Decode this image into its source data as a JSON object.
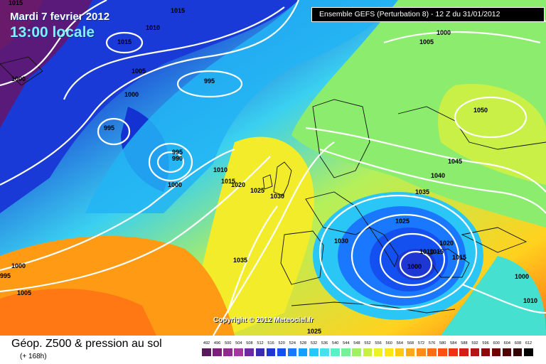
{
  "header": {
    "date": "Mardi 7 fevrier 2012",
    "local_time": "13:00 locale",
    "model": "Ensemble GEFS (Perturbation 8)  -  12 Z du 31/01/2012"
  },
  "copyright": "Copyright © 2012 Meteociel.fr",
  "footer": {
    "title": "Géop. Z500 & pression au sol",
    "subtitle": "(+ 168h)"
  },
  "isobar_labels": [
    "1015",
    "1010",
    "1015",
    "1000",
    "1005",
    "1000",
    "995",
    "995",
    "995",
    "990",
    "1000",
    "1010",
    "1015",
    "1020",
    "1025",
    "1030",
    "1000",
    "1005",
    "1050",
    "1045",
    "1040",
    "1035",
    "1025",
    "1030",
    "1010",
    "1015",
    "1020",
    "1015",
    "1000",
    "1035",
    "1000",
    "1005",
    "1000",
    "995",
    "1010",
    "1025",
    "1015"
  ],
  "scale": {
    "labels": [
      "492",
      "496",
      "500",
      "504",
      "508",
      "512",
      "516",
      "520",
      "524",
      "528",
      "532",
      "536",
      "540",
      "544",
      "548",
      "552",
      "556",
      "560",
      "564",
      "568",
      "572",
      "576",
      "580",
      "584",
      "588",
      "592",
      "596",
      "600",
      "604",
      "608",
      "612"
    ],
    "colors": [
      "#5a1a5a",
      "#7a1f7a",
      "#8f2a8f",
      "#a03aa0",
      "#6e2a9e",
      "#3a2cb0",
      "#1e36d2",
      "#1450f0",
      "#1a78ff",
      "#14a0ff",
      "#22c8ff",
      "#46e0f0",
      "#5af0c8",
      "#78f096",
      "#a0f064",
      "#c8f040",
      "#f0f028",
      "#ffe614",
      "#ffc814",
      "#ffaa14",
      "#ff8c14",
      "#ff6e14",
      "#ff5014",
      "#f03214",
      "#d21e14",
      "#b41414",
      "#8c0a0a",
      "#6e0000",
      "#500000",
      "#320000",
      "#000000"
    ]
  }
}
